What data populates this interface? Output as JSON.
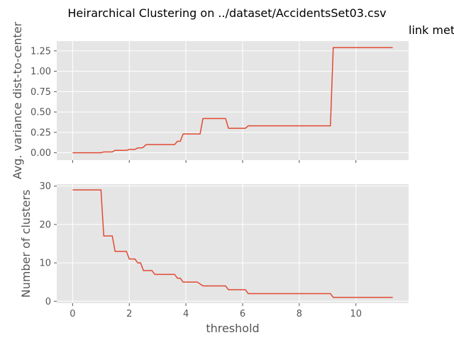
{
  "figure": {
    "title": "Heirarchical Clustering on ../dataset/AccidentsSet03.csv",
    "corner_text": "link met"
  },
  "style": {
    "panel_bg": "#e5e5e5",
    "grid": "#ffffff",
    "line": "#e24a33",
    "tick_text": "#555555"
  },
  "chart_data": [
    {
      "type": "line",
      "ylabel": "Avg. variance dist-to-center",
      "xlabel": "",
      "xlim": [
        -0.56,
        11.86
      ],
      "ylim": [
        -0.09,
        1.37
      ],
      "xticks": [
        0,
        2,
        4,
        6,
        8,
        10
      ],
      "yticks": [
        0.0,
        0.25,
        0.5,
        0.75,
        1.0,
        1.25
      ],
      "ytick_labels": [
        "0.00",
        "0.25",
        "0.50",
        "0.75",
        "1.00",
        "1.25"
      ],
      "show_xtick_labels": false,
      "grid": true,
      "series": [
        {
          "x": [
            0,
            1.0,
            1.1,
            1.4,
            1.5,
            1.9,
            2.0,
            2.2,
            2.3,
            2.45,
            2.5,
            2.6,
            3.5,
            3.6,
            3.7,
            3.8,
            3.9,
            4.5,
            4.6,
            5.4,
            5.5,
            6.1,
            6.2,
            9.1,
            9.2,
            11.3
          ],
          "y": [
            0,
            0,
            0.01,
            0.01,
            0.03,
            0.03,
            0.04,
            0.04,
            0.06,
            0.06,
            0.07,
            0.1,
            0.1,
            0.1,
            0.14,
            0.14,
            0.23,
            0.23,
            0.42,
            0.42,
            0.3,
            0.3,
            0.33,
            0.33,
            1.29,
            1.29
          ]
        }
      ]
    },
    {
      "type": "line",
      "ylabel": "Number of clusters",
      "xlabel": "threshold",
      "xlim": [
        -0.56,
        11.86
      ],
      "ylim": [
        -0.5,
        30.5
      ],
      "xticks": [
        0,
        2,
        4,
        6,
        8,
        10
      ],
      "yticks": [
        0,
        10,
        20,
        30
      ],
      "ytick_labels": [
        "0",
        "10",
        "20",
        "30"
      ],
      "show_xtick_labels": true,
      "grid": true,
      "series": [
        {
          "x": [
            0,
            1.0,
            1.1,
            1.4,
            1.5,
            1.9,
            2.0,
            2.2,
            2.3,
            2.4,
            2.5,
            2.8,
            2.9,
            3.6,
            3.7,
            3.8,
            3.9,
            4.4,
            4.6,
            5.4,
            5.5,
            6.1,
            6.2,
            9.1,
            9.2,
            11.3
          ],
          "y": [
            29,
            29,
            17,
            17,
            13,
            13,
            11,
            11,
            10,
            10,
            8,
            8,
            7,
            7,
            6,
            6,
            5,
            5,
            4,
            4,
            3,
            3,
            2,
            2,
            1,
            1
          ]
        }
      ]
    }
  ]
}
